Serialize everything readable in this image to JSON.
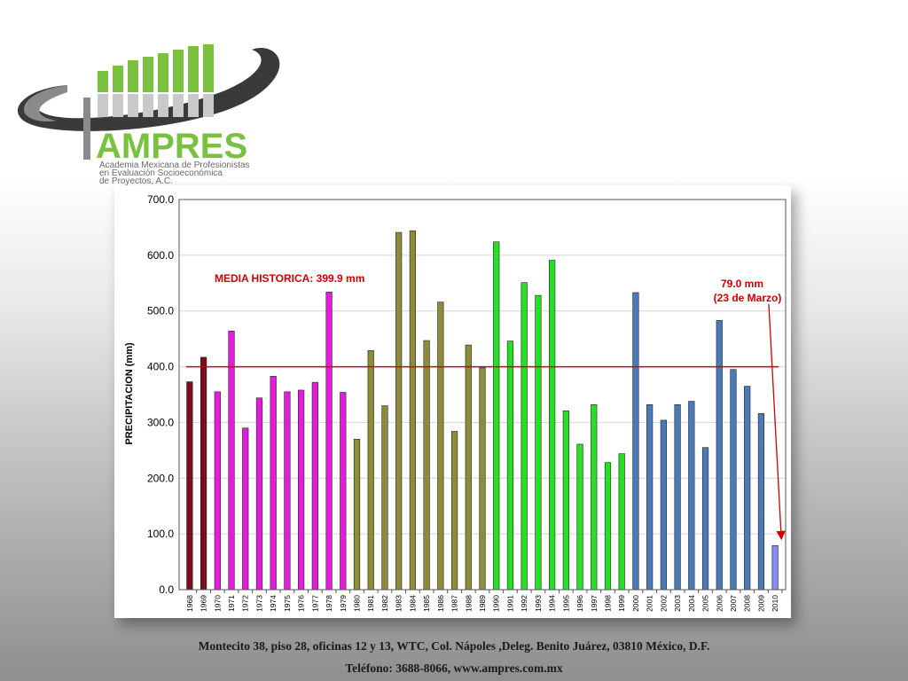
{
  "logo": {
    "name": "AMPRES",
    "line1": "Academia Mexicana de Profesionistas",
    "line2": "en Evaluación Socioeconómica",
    "line3": "de Proyectos, A.C.",
    "colors": {
      "green": "#7ac142",
      "gray": "#6a6a6a",
      "dark": "#3a3a3a"
    }
  },
  "chart_data": {
    "type": "bar",
    "title": "",
    "xlabel": "",
    "ylabel": "PRECIPITACION (mm)",
    "ylim": [
      0,
      700
    ],
    "yticks": [
      "0.0",
      "100.0",
      "200.0",
      "300.0",
      "400.0",
      "500.0",
      "600.0",
      "700.0"
    ],
    "grid": true,
    "categories": [
      "1968",
      "1969",
      "1970",
      "1971",
      "1972",
      "1973",
      "1974",
      "1975",
      "1976",
      "1977",
      "1978",
      "1979",
      "1980",
      "1981",
      "1982",
      "1983",
      "1984",
      "1985",
      "1986",
      "1987",
      "1988",
      "1989",
      "1990",
      "1991",
      "1992",
      "1993",
      "1994",
      "1995",
      "1996",
      "1997",
      "1998",
      "1999",
      "2000",
      "2001",
      "2002",
      "2003",
      "2004",
      "2005",
      "2006",
      "2007",
      "2008",
      "2009",
      "2010"
    ],
    "values": [
      373,
      417,
      355,
      464,
      290,
      344,
      383,
      355,
      358,
      372,
      534,
      354,
      270,
      429,
      330,
      641,
      644,
      447,
      516,
      284,
      439,
      398,
      624,
      446,
      551,
      528,
      591,
      321,
      261,
      332,
      228,
      244,
      533,
      332,
      304,
      332,
      338,
      255,
      483,
      395,
      365,
      316,
      79
    ],
    "bar_colors": [
      "#7b0d1e",
      "#7b0d1e",
      "#e41ddc",
      "#e41ddc",
      "#e41ddc",
      "#e41ddc",
      "#e41ddc",
      "#e41ddc",
      "#e41ddc",
      "#e41ddc",
      "#e41ddc",
      "#e41ddc",
      "#8e8c3a",
      "#8e8c3a",
      "#8e8c3a",
      "#8e8c3a",
      "#8e8c3a",
      "#8e8c3a",
      "#8e8c3a",
      "#8e8c3a",
      "#8e8c3a",
      "#8e8c3a",
      "#25e025",
      "#25e025",
      "#25e025",
      "#25e025",
      "#25e025",
      "#25e025",
      "#25e025",
      "#25e025",
      "#25e025",
      "#25e025",
      "#4a7ab8",
      "#4a7ab8",
      "#4a7ab8",
      "#4a7ab8",
      "#4a7ab8",
      "#4a7ab8",
      "#4a7ab8",
      "#4a7ab8",
      "#4a7ab8",
      "#4a7ab8",
      "#8b8bf5"
    ],
    "reference_line": {
      "value": 399.9,
      "color": "#cc0000"
    },
    "annotations": {
      "media": "MEDIA HISTORICA: 399.9 mm",
      "last_value": "79.0 mm",
      "last_date": "(23 de Marzo)"
    }
  },
  "footer": {
    "line1": "Montecito 38, piso 28, oficinas 12 y 13, WTC, Col. Nápoles ,Deleg. Benito Juárez, 03810 México, D.F.",
    "line2": "Teléfono: 3688-8066, www.ampres.com.mx"
  }
}
